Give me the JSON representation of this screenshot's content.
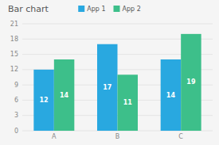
{
  "chart_data": {
    "type": "bar",
    "title": "Bar chart",
    "categories": [
      "A",
      "B",
      "C"
    ],
    "series": [
      {
        "name": "App 1",
        "color": "#29a8e0",
        "values": [
          12,
          17,
          14
        ]
      },
      {
        "name": "App 2",
        "color": "#3dbf8a",
        "values": [
          14,
          11,
          19
        ]
      }
    ],
    "ylim": [
      0,
      21
    ],
    "yticks": [
      0,
      3,
      6,
      9,
      12,
      15,
      18,
      21
    ],
    "grid": true,
    "legend": "top",
    "data_labels": true
  }
}
